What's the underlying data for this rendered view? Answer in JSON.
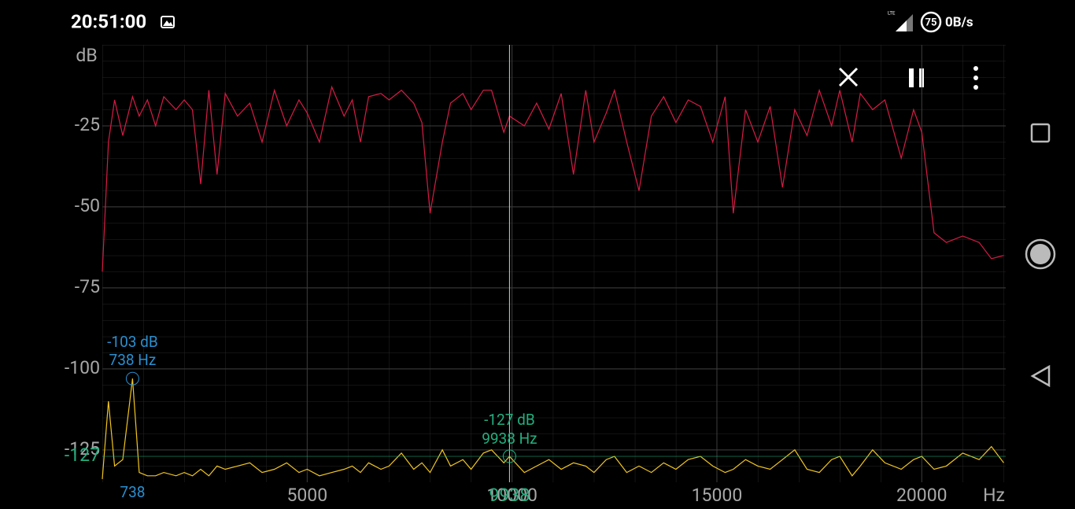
{
  "status_bar": {
    "time": "20:51:00",
    "network": "LTE",
    "battery": "75",
    "speed": "0B/s"
  },
  "chart_data": {
    "type": "line",
    "x_label": "Hz",
    "y_label": "dB",
    "xlim": [
      0,
      22050
    ],
    "ylim": [
      -135,
      0
    ],
    "xticks": [
      5000,
      10000,
      15000,
      20000
    ],
    "yticks": [
      -25,
      -50,
      -75,
      -100,
      -125
    ],
    "grid": true,
    "x": [
      0,
      150,
      300,
      500,
      738,
      900,
      1100,
      1300,
      1500,
      1800,
      2000,
      2200,
      2400,
      2600,
      2800,
      3000,
      3300,
      3600,
      3900,
      4200,
      4500,
      4800,
      5000,
      5300,
      5600,
      5900,
      6100,
      6300,
      6500,
      6800,
      7000,
      7300,
      7600,
      7800,
      8000,
      8300,
      8500,
      8800,
      9000,
      9300,
      9500,
      9800,
      9938,
      10300,
      10600,
      10900,
      11200,
      11500,
      11800,
      12000,
      12300,
      12500,
      12800,
      13100,
      13400,
      13700,
      14000,
      14300,
      14600,
      14900,
      15200,
      15400,
      15700,
      16000,
      16300,
      16600,
      16900,
      17200,
      17500,
      17800,
      18000,
      18300,
      18500,
      18800,
      19100,
      19500,
      19800,
      20000,
      20300,
      20600,
      21000,
      21400,
      21700,
      22000
    ],
    "series": [
      {
        "color": "#d81b46",
        "values": [
          -70,
          -30,
          -17,
          -28,
          -16,
          -22,
          -17,
          -25,
          -16,
          -20,
          -17,
          -20,
          -43,
          -14,
          -40,
          -15,
          -22,
          -18,
          -30,
          -14,
          -25,
          -17,
          -21,
          -30,
          -13,
          -22,
          -17,
          -30,
          -16,
          -15,
          -17,
          -14,
          -18,
          -24,
          -52,
          -30,
          -18,
          -15,
          -20,
          -14,
          -14,
          -27,
          -22,
          -25,
          -18,
          -26,
          -15,
          -40,
          -14,
          -30,
          -21,
          -14,
          -30,
          -45,
          -22,
          -16,
          -24,
          -17,
          -19,
          -30,
          -16,
          -52,
          -20,
          -30,
          -19,
          -44,
          -20,
          -28,
          -14,
          -25,
          -14,
          -30,
          -15,
          -20,
          -17,
          -35,
          -20,
          -27,
          -58,
          -61,
          -59,
          -61,
          -66,
          -65
        ]
      },
      {
        "color": "#f2c61f",
        "values": [
          -134,
          -110,
          -130,
          -128,
          -103,
          -132,
          -133,
          -133,
          -132,
          -133,
          -132,
          -133,
          -131,
          -133,
          -130,
          -131,
          -130,
          -129,
          -132,
          -131,
          -129,
          -132,
          -131,
          -133,
          -132,
          -131,
          -130,
          -132,
          -129,
          -131,
          -130,
          -126,
          -131,
          -129,
          -132,
          -125,
          -130,
          -128,
          -131,
          -126,
          -125,
          -129,
          -127,
          -132,
          -130,
          -128,
          -131,
          -129,
          -130,
          -132,
          -128,
          -127,
          -132,
          -130,
          -132,
          -129,
          -131,
          -128,
          -127,
          -130,
          -132,
          -131,
          -128,
          -130,
          -131,
          -128,
          -125,
          -131,
          -132,
          -128,
          -127,
          -133,
          -130,
          -125,
          -129,
          -131,
          -128,
          -127,
          -131,
          -130,
          -126,
          -128,
          -124,
          -129
        ]
      }
    ],
    "peak": {
      "x": 738,
      "y": -103,
      "labels": [
        "-103 dB",
        "738 Hz"
      ],
      "color": "#2a8fd0"
    },
    "cursor": {
      "x": 9938,
      "y": -127,
      "labels": [
        "-127 dB",
        "9938 Hz"
      ],
      "color": "#22b07f"
    }
  }
}
